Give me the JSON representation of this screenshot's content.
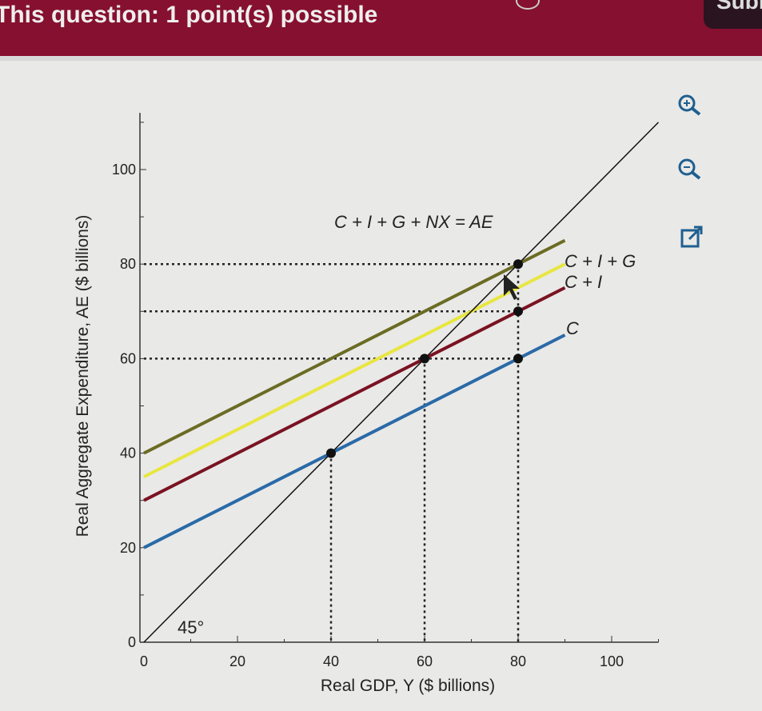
{
  "header": {
    "question_text": "This question: 1 point(s) possible",
    "submit_label": "Submit"
  },
  "toolbar": {
    "icons": [
      "zoom-in-icon",
      "zoom-out-icon",
      "pop-out-icon"
    ]
  },
  "colors": {
    "header": "#86102f",
    "C": "#2a6aa8",
    "C+I": "#7a1222",
    "C+I+G": "#e8e640",
    "C+I+G+NX": "#6b6b24"
  },
  "chart_data": {
    "type": "line",
    "xlabel": "Real GDP, Y ($ billions)",
    "ylabel": "Real Aggregate Expenditure, AE ($ billions)",
    "xlim": [
      0,
      110
    ],
    "ylim": [
      0,
      112
    ],
    "x_ticks": [
      0,
      20,
      40,
      60,
      80,
      100
    ],
    "y_ticks": [
      0,
      20,
      40,
      60,
      80,
      100
    ],
    "grid": false,
    "series": [
      {
        "name": "C",
        "x": [
          0,
          90
        ],
        "y": [
          20,
          65
        ]
      },
      {
        "name": "C + I",
        "x": [
          0,
          90
        ],
        "y": [
          30,
          75
        ]
      },
      {
        "name": "C + I + G",
        "x": [
          0,
          90
        ],
        "y": [
          35,
          80
        ]
      },
      {
        "name": "C + I + G + NX = AE",
        "x": [
          0,
          90
        ],
        "y": [
          40,
          85
        ]
      },
      {
        "x": [
          0,
          110
        ],
        "y": [
          0,
          110
        ]
      }
    ],
    "points": [
      {
        "x": 40,
        "y": 40
      },
      {
        "x": 60,
        "y": 60
      },
      {
        "x": 80,
        "y": 60
      },
      {
        "x": 80,
        "y": 70
      },
      {
        "x": 80,
        "y": 80
      }
    ],
    "reference_lines": {
      "horizontal": [
        [
          80,
          80
        ],
        [
          80,
          70
        ],
        [
          80,
          60
        ]
      ],
      "vertical": [
        40,
        60,
        80
      ]
    },
    "annotations": {
      "angle_label": "45°"
    }
  }
}
